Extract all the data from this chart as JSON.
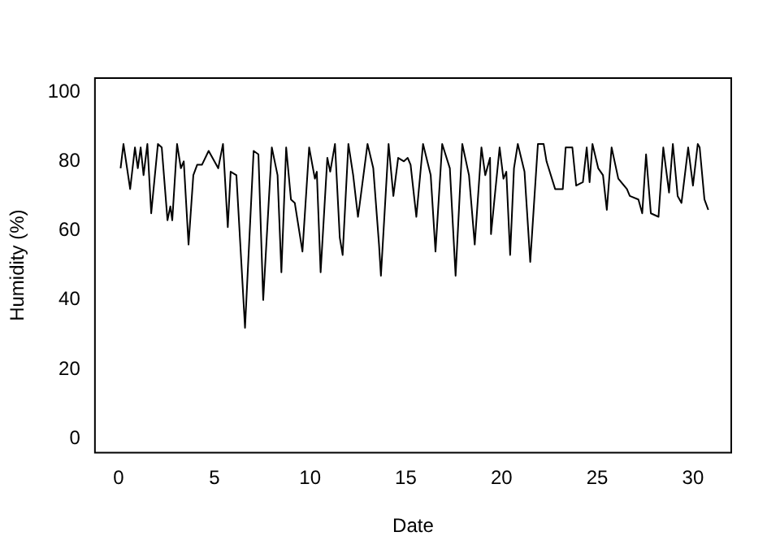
{
  "chart_data": {
    "type": "line",
    "xlabel": "Date",
    "ylabel": "Humidity (%)",
    "xlim": [
      -1.24,
      32
    ],
    "ylim": [
      -4,
      104
    ],
    "xticks": [
      0,
      5,
      10,
      15,
      20,
      25,
      30
    ],
    "yticks": [
      0,
      20,
      40,
      60,
      80,
      100
    ],
    "grid": false,
    "legend": false,
    "marker": "none",
    "line_style": "solid",
    "series": [
      {
        "color": "#000000",
        "x": [
          0.1,
          0.25,
          0.6,
          0.85,
          1.0,
          1.15,
          1.3,
          1.5,
          1.7,
          2.05,
          2.25,
          2.55,
          2.7,
          2.8,
          3.05,
          3.25,
          3.4,
          3.65,
          3.9,
          4.1,
          4.35,
          4.7,
          5.0,
          5.2,
          5.45,
          5.7,
          5.85,
          6.15,
          6.6,
          7.05,
          7.3,
          7.55,
          8.0,
          8.3,
          8.5,
          8.75,
          9.0,
          9.2,
          9.6,
          9.95,
          10.25,
          10.35,
          10.55,
          10.9,
          11.05,
          11.3,
          11.55,
          11.7,
          12.0,
          12.25,
          12.5,
          12.6,
          13.0,
          13.3,
          13.6,
          13.7,
          14.1,
          14.35,
          14.6,
          14.9,
          15.1,
          15.25,
          15.55,
          15.9,
          16.3,
          16.55,
          16.9,
          17.3,
          17.6,
          17.95,
          18.3,
          18.6,
          18.95,
          19.15,
          19.4,
          19.45,
          19.9,
          20.1,
          20.25,
          20.45,
          20.65,
          20.85,
          21.2,
          21.5,
          21.9,
          22.2,
          22.35,
          22.8,
          23.2,
          23.35,
          23.7,
          23.9,
          24.25,
          24.45,
          24.6,
          24.75,
          25.05,
          25.3,
          25.5,
          25.75,
          26.1,
          26.55,
          26.7,
          27.15,
          27.35,
          27.55,
          27.8,
          28.2,
          28.45,
          28.75,
          28.95,
          29.2,
          29.4,
          29.75,
          30.0,
          30.25,
          30.35,
          30.6,
          30.8
        ],
        "values": [
          78,
          85,
          72,
          84,
          78,
          84,
          76,
          85,
          65,
          85,
          84,
          63,
          67,
          63,
          85,
          78,
          80,
          56,
          76,
          79,
          79,
          83,
          80,
          78,
          85,
          61,
          77,
          76,
          32,
          83,
          82,
          40,
          84,
          76,
          48,
          84,
          69,
          68,
          54,
          84,
          75,
          77,
          48,
          81,
          77,
          85,
          58,
          53,
          85,
          76,
          64,
          68,
          85,
          78,
          56,
          47,
          85,
          70,
          81,
          80,
          81,
          79,
          64,
          85,
          76,
          54,
          85,
          78,
          47,
          85,
          76,
          56,
          84,
          76,
          81,
          59,
          84,
          75,
          77,
          53,
          78,
          85,
          77,
          51,
          85,
          85,
          80,
          72,
          72,
          84,
          84,
          73,
          74,
          84,
          74,
          85,
          78,
          76,
          66,
          84,
          75,
          72,
          70,
          69,
          65,
          82,
          65,
          64,
          84,
          71,
          85,
          70,
          68,
          84,
          73,
          85,
          84,
          69,
          66
        ]
      }
    ]
  }
}
